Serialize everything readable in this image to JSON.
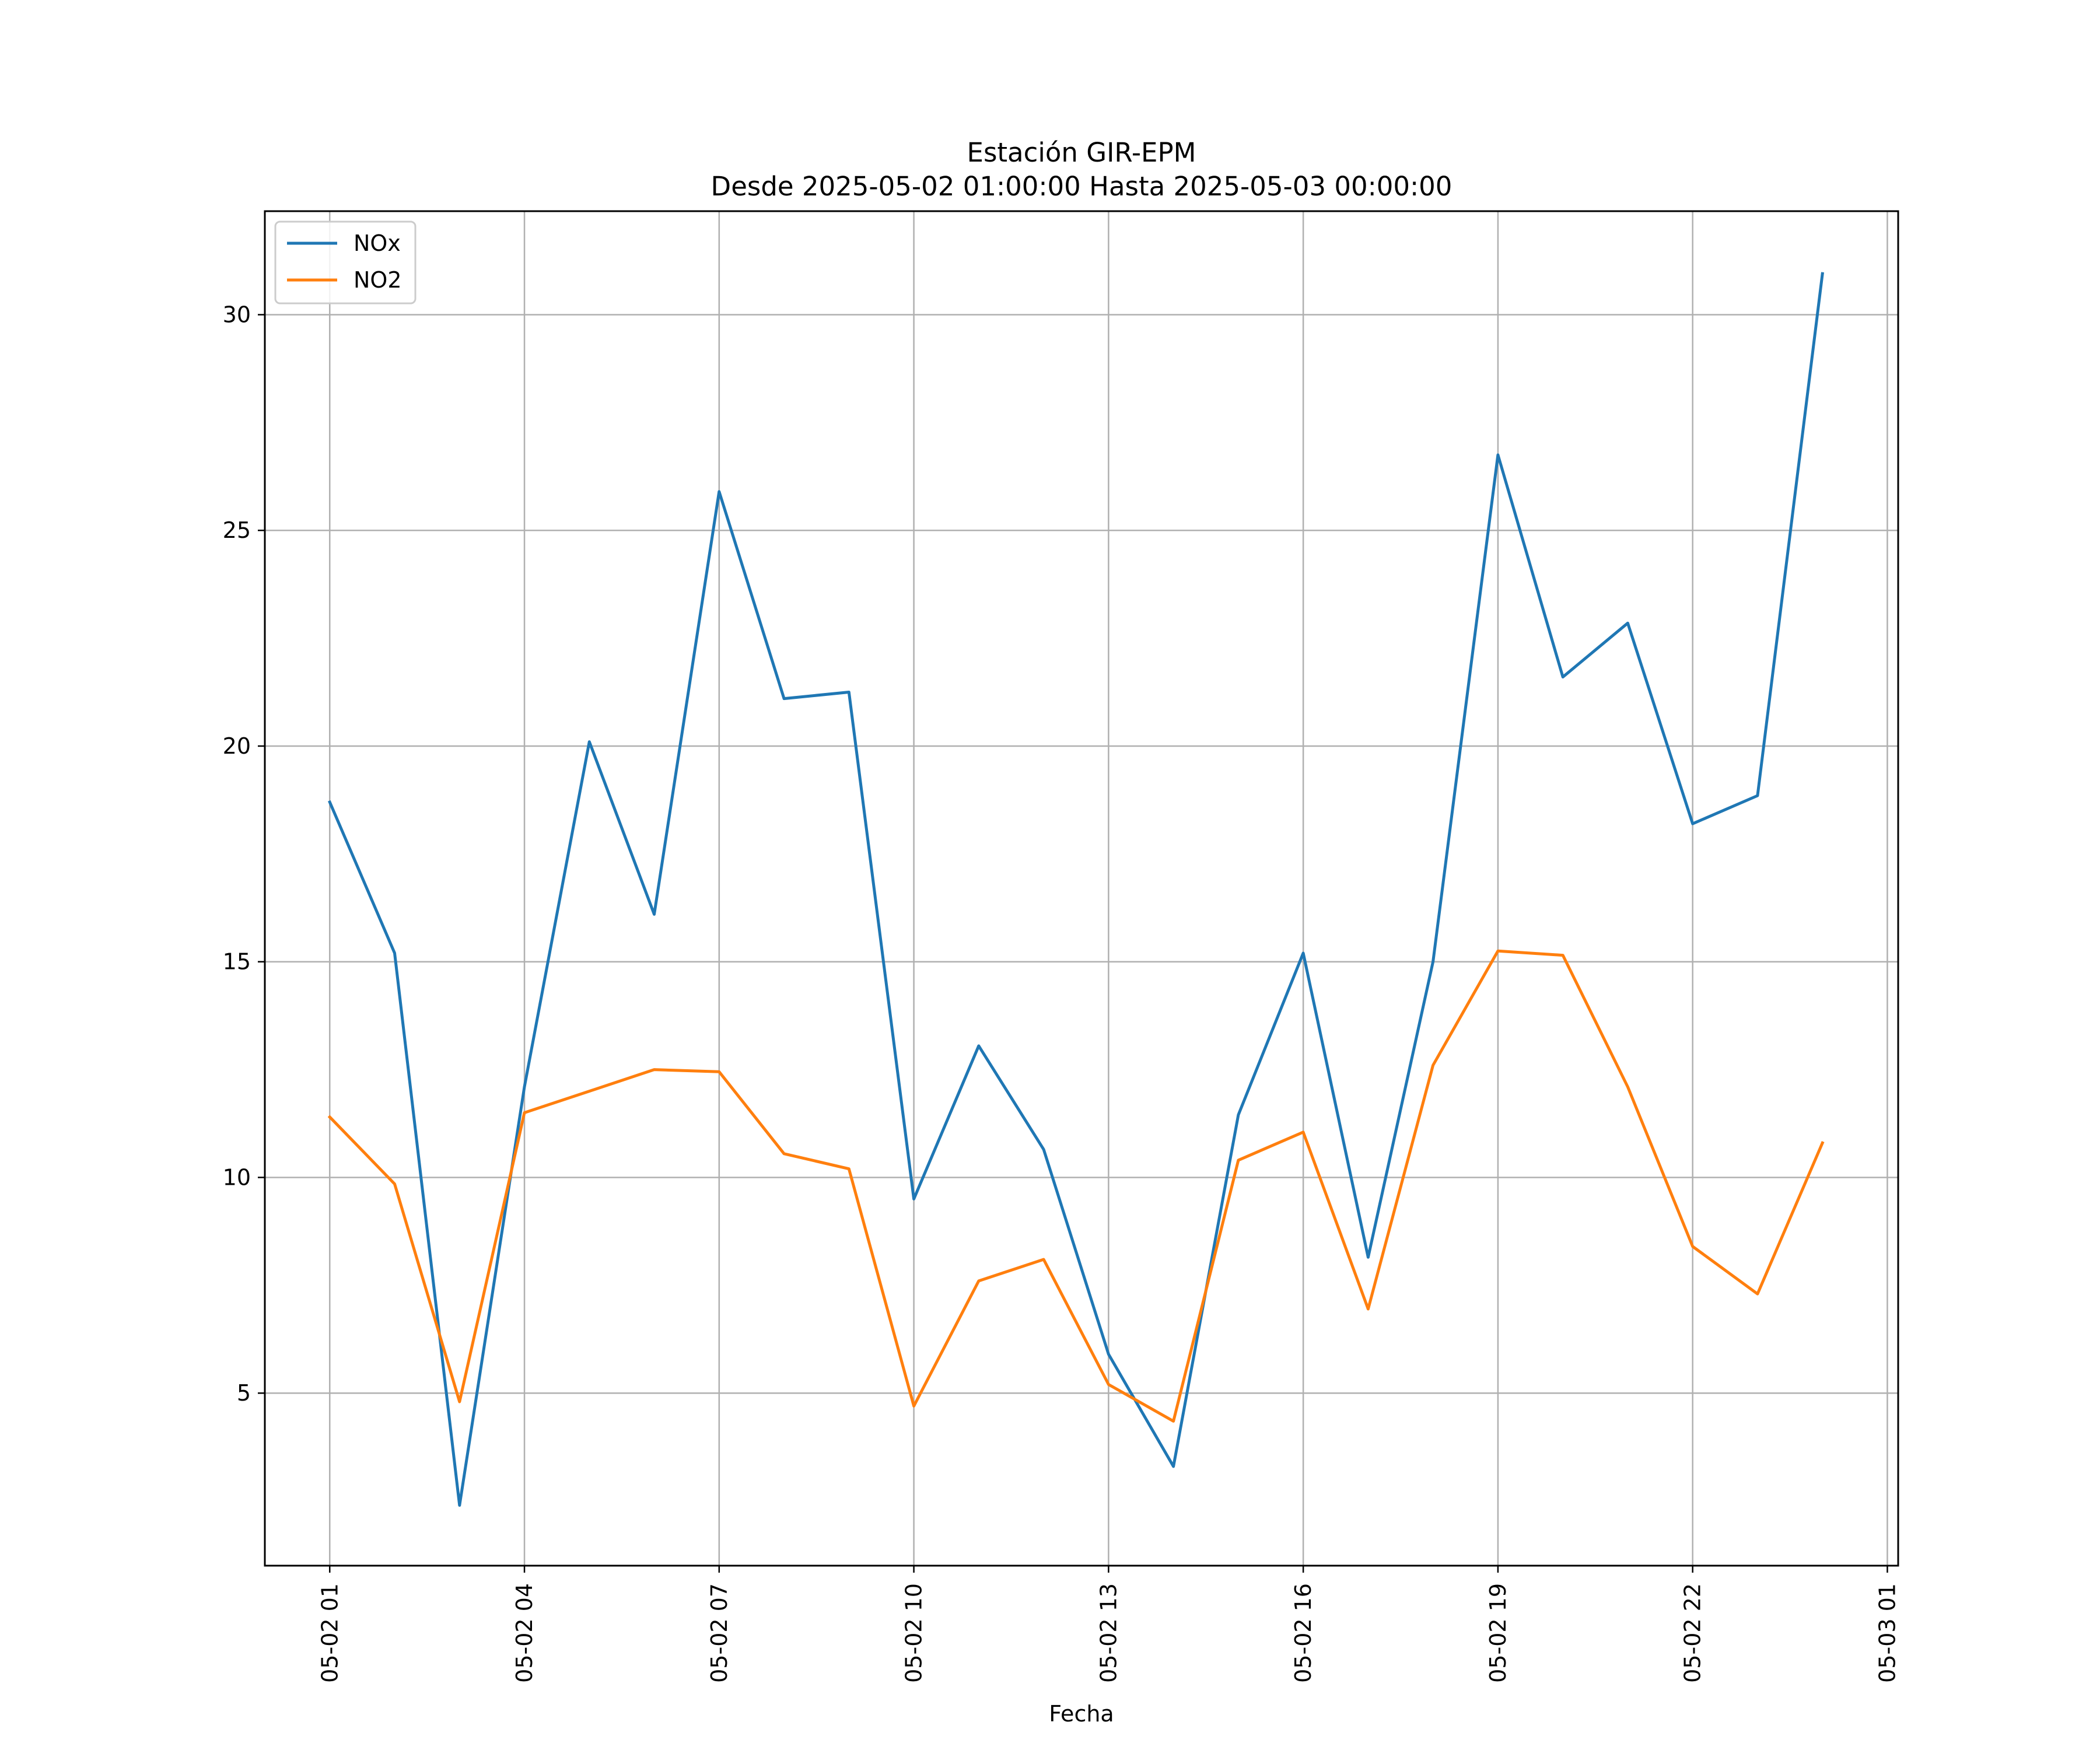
{
  "chart_data": {
    "type": "line",
    "title": "Estación GIR-EPM",
    "subtitle": "Desde 2025-05-02 01:00:00 Hasta 2025-05-03 00:00:00",
    "xlabel": "Fecha",
    "ylabel": "",
    "x": [
      "2025-05-02 01:00",
      "2025-05-02 02:00",
      "2025-05-02 03:00",
      "2025-05-02 04:00",
      "2025-05-02 05:00",
      "2025-05-02 06:00",
      "2025-05-02 07:00",
      "2025-05-02 08:00",
      "2025-05-02 09:00",
      "2025-05-02 10:00",
      "2025-05-02 11:00",
      "2025-05-02 12:00",
      "2025-05-02 13:00",
      "2025-05-02 14:00",
      "2025-05-02 15:00",
      "2025-05-02 16:00",
      "2025-05-02 17:00",
      "2025-05-02 18:00",
      "2025-05-02 19:00",
      "2025-05-02 20:00",
      "2025-05-02 21:00",
      "2025-05-02 22:00",
      "2025-05-02 23:00",
      "2025-05-03 00:00"
    ],
    "xlim": [
      "2025-05-02 00:00",
      "2025-05-03 01:10"
    ],
    "ylim": [
      1,
      32.4
    ],
    "x_ticks": [
      "05-02 01",
      "05-02 04",
      "05-02 07",
      "05-02 10",
      "05-02 13",
      "05-02 16",
      "05-02 19",
      "05-02 22",
      "05-03 01"
    ],
    "x_tick_values": [
      "2025-05-02 01:00",
      "2025-05-02 04:00",
      "2025-05-02 07:00",
      "2025-05-02 10:00",
      "2025-05-02 13:00",
      "2025-05-02 16:00",
      "2025-05-02 19:00",
      "2025-05-02 22:00",
      "2025-05-03 01:00"
    ],
    "y_ticks": [
      5,
      10,
      15,
      20,
      25,
      30
    ],
    "grid": true,
    "legend_position": "top-left",
    "series": [
      {
        "name": "NOx",
        "color": "#1f77b4",
        "values": [
          18.7,
          15.2,
          2.4,
          12.1,
          20.1,
          16.1,
          25.9,
          21.1,
          21.25,
          9.5,
          13.05,
          10.65,
          5.9,
          3.3,
          11.45,
          15.2,
          8.15,
          15.0,
          26.75,
          21.6,
          22.85,
          18.2,
          18.85,
          30.95
        ]
      },
      {
        "name": "NO2",
        "color": "#ff7f0e",
        "values": [
          11.4,
          9.85,
          4.8,
          11.5,
          12.0,
          12.5,
          12.45,
          10.55,
          10.2,
          4.7,
          7.6,
          8.1,
          5.2,
          4.35,
          10.4,
          11.05,
          6.95,
          12.6,
          15.25,
          15.15,
          12.1,
          8.4,
          7.3,
          10.8
        ]
      }
    ]
  }
}
